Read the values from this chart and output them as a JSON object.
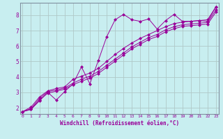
{
  "xlabel": "Windchill (Refroidissement éolien,°C)",
  "background_color": "#c8eef0",
  "grid_color": "#b0c8c8",
  "line_color": "#990099",
  "x_ticks": [
    0,
    1,
    2,
    3,
    4,
    5,
    6,
    7,
    8,
    9,
    10,
    11,
    12,
    13,
    14,
    15,
    16,
    17,
    18,
    19,
    20,
    21,
    22,
    23
  ],
  "y_ticks": [
    2,
    3,
    4,
    5,
    6,
    7,
    8
  ],
  "xlim": [
    -0.3,
    23.3
  ],
  "ylim": [
    1.6,
    8.8
  ],
  "series": [
    [
      1.75,
      1.9,
      2.45,
      3.0,
      2.5,
      3.05,
      3.55,
      4.65,
      3.55,
      5.05,
      6.6,
      7.7,
      8.05,
      7.7,
      7.6,
      7.75,
      7.1,
      7.65,
      8.05,
      7.6,
      7.6,
      7.65,
      7.6,
      8.55
    ],
    [
      1.75,
      2.05,
      2.7,
      3.1,
      3.25,
      3.35,
      3.85,
      4.05,
      4.25,
      4.55,
      5.0,
      5.45,
      5.85,
      6.2,
      6.5,
      6.75,
      7.0,
      7.25,
      7.45,
      7.55,
      7.6,
      7.65,
      7.7,
      8.55
    ],
    [
      1.75,
      1.95,
      2.6,
      3.05,
      3.15,
      3.28,
      3.6,
      3.85,
      4.05,
      4.35,
      4.75,
      5.15,
      5.55,
      5.95,
      6.25,
      6.55,
      6.75,
      7.05,
      7.25,
      7.38,
      7.43,
      7.48,
      7.53,
      8.35
    ],
    [
      1.75,
      1.9,
      2.5,
      2.95,
      3.08,
      3.2,
      3.5,
      3.72,
      3.92,
      4.22,
      4.62,
      5.02,
      5.42,
      5.82,
      6.12,
      6.42,
      6.62,
      6.92,
      7.12,
      7.27,
      7.32,
      7.37,
      7.42,
      8.2
    ]
  ]
}
